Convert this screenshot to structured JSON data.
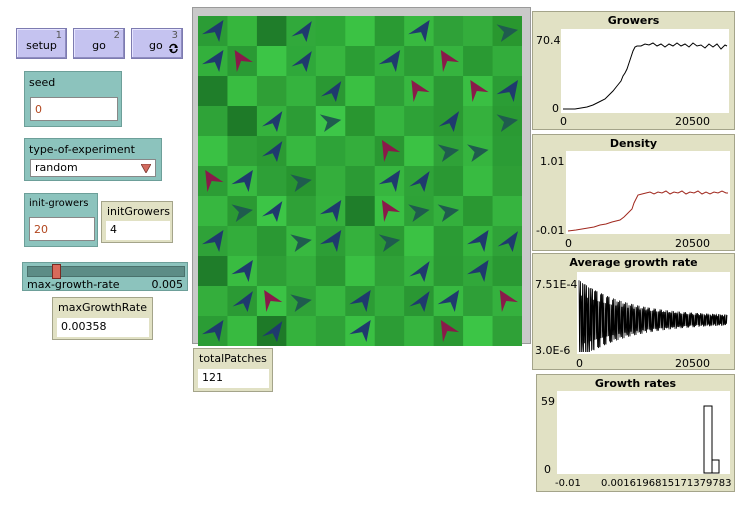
{
  "buttons": [
    {
      "label": "setup",
      "key": "1"
    },
    {
      "label": "go",
      "key": "2"
    },
    {
      "label": "go",
      "key": "3",
      "icon": "forever-icon"
    }
  ],
  "seed": {
    "label": "seed",
    "value": "0"
  },
  "experiment": {
    "label": "type-of-experiment",
    "value": "random"
  },
  "initGrowersInput": {
    "label": "init-growers",
    "value": "20"
  },
  "initGrowersMonitor": {
    "label": "initGrowers",
    "value": "4"
  },
  "slider": {
    "label": "max-growth-rate",
    "value": "0.005",
    "fraction": 0.16
  },
  "maxGrowthRateMonitor": {
    "label": "maxGrowthRate",
    "value": "0.00358"
  },
  "totalPatchesMonitor": {
    "label": "totalPatches",
    "value": "121"
  },
  "colors": {
    "button": "#c5c3f0",
    "widget": "#8cc3bd",
    "monitor": "#e1e1c4",
    "turtle_blue": "#1f3a6e",
    "turtle_maroon": "#8a1a4a",
    "turtle_teal": "#1f5c4e"
  },
  "world": {
    "cols": 11,
    "rows": 11,
    "patch_shades": [
      "#2b9c35",
      "#36b63d",
      "#1f7d2a",
      "#31a93b",
      "#2ea838",
      "#3bc244",
      "#2a9a33",
      "#38b940",
      "#2fa138",
      "#34ad3c",
      "#29972f",
      "#33b03c",
      "#2a9a34",
      "#3cc546",
      "#2fa83a",
      "#37b63f",
      "#2b9d34",
      "#33af3c",
      "#2c9c35",
      "#36b43f",
      "#2a9a33",
      "#33ad3c",
      "#1f7e2a",
      "#39bd41",
      "#2f9f36",
      "#35b33e",
      "#2a9833",
      "#3ac042",
      "#2e9f37",
      "#37b840",
      "#2b9934",
      "#3abf43",
      "#2b9d35",
      "#2fa338",
      "#1e7a28",
      "#35b23d",
      "#2c9c35",
      "#3dc648",
      "#299630",
      "#36b53f",
      "#2ea237",
      "#2b9933",
      "#35b13d",
      "#2a9a33",
      "#3ac144",
      "#2fa137",
      "#2b9a33",
      "#37b840",
      "#2ea338",
      "#34ae3c",
      "#2a9832",
      "#3bc244",
      "#2fa238",
      "#36b53f",
      "#2b9c35",
      "#2c9d35",
      "#38ba40",
      "#2ea037",
      "#289530",
      "#34ae3c",
      "#2b9a34",
      "#37b63f",
      "#2fa338",
      "#2a9833",
      "#38bb41",
      "#2e9f36",
      "#37b740",
      "#2b9a33",
      "#3cc546",
      "#2fa137",
      "#35b13d",
      "#1f7e2a",
      "#3ac043",
      "#2ea237",
      "#34b03d",
      "#2a9832",
      "#36b43f",
      "#2fa238",
      "#33ad3b",
      "#2a9833",
      "#38b940",
      "#2d9e36",
      "#35b13d",
      "#2b9a33",
      "#3bc244",
      "#2b9b34",
      "#36b53e",
      "#2fa238",
      "#1f7d2a",
      "#39bc41",
      "#2e9f36",
      "#34ae3c",
      "#2a9732",
      "#3ac043",
      "#2fa137",
      "#36b43f",
      "#2b9a34",
      "#31a83a",
      "#2a9933",
      "#34ae3c",
      "#2b9a34",
      "#3bc345",
      "#2fa238",
      "#37b740",
      "#2c9c35",
      "#33ad3c",
      "#2a9733",
      "#38ba41",
      "#2e9f37",
      "#35b13e",
      "#2b9c35",
      "#38ba40",
      "#1e7a28",
      "#35b23d",
      "#2fa238",
      "#3ac043",
      "#2c9c35",
      "#36b43f",
      "#2a9832",
      "#3cc546",
      "#2fa137"
    ],
    "turtles": [
      [
        0,
        0,
        "blue"
      ],
      [
        1,
        1,
        "maroon"
      ],
      [
        0,
        1,
        "blue"
      ],
      [
        3,
        1,
        "blue"
      ],
      [
        6,
        1,
        "blue"
      ],
      [
        8,
        1,
        "maroon"
      ],
      [
        10,
        0,
        "teal"
      ],
      [
        3,
        0,
        "blue"
      ],
      [
        7,
        0,
        "blue"
      ],
      [
        4,
        2,
        "blue"
      ],
      [
        7,
        2,
        "maroon"
      ],
      [
        9,
        2,
        "maroon"
      ],
      [
        10,
        2,
        "blue"
      ],
      [
        2,
        3,
        "blue"
      ],
      [
        4,
        3,
        "teal"
      ],
      [
        8,
        3,
        "blue"
      ],
      [
        10,
        3,
        "teal"
      ],
      [
        2,
        4,
        "blue"
      ],
      [
        6,
        4,
        "maroon"
      ],
      [
        8,
        4,
        "teal"
      ],
      [
        9,
        4,
        "teal"
      ],
      [
        0,
        5,
        "maroon"
      ],
      [
        1,
        5,
        "blue"
      ],
      [
        3,
        5,
        "teal"
      ],
      [
        6,
        5,
        "blue"
      ],
      [
        7,
        5,
        "blue"
      ],
      [
        1,
        6,
        "teal"
      ],
      [
        2,
        6,
        "blue"
      ],
      [
        4,
        6,
        "blue"
      ],
      [
        6,
        6,
        "maroon"
      ],
      [
        7,
        6,
        "teal"
      ],
      [
        8,
        6,
        "teal"
      ],
      [
        0,
        7,
        "blue"
      ],
      [
        3,
        7,
        "teal"
      ],
      [
        4,
        7,
        "blue"
      ],
      [
        6,
        7,
        "teal"
      ],
      [
        9,
        7,
        "blue"
      ],
      [
        10,
        7,
        "blue"
      ],
      [
        1,
        8,
        "blue"
      ],
      [
        7,
        8,
        "blue"
      ],
      [
        9,
        8,
        "blue"
      ],
      [
        1,
        9,
        "blue"
      ],
      [
        2,
        9,
        "maroon"
      ],
      [
        3,
        9,
        "teal"
      ],
      [
        5,
        9,
        "blue"
      ],
      [
        7,
        9,
        "blue"
      ],
      [
        8,
        9,
        "blue"
      ],
      [
        10,
        9,
        "maroon"
      ],
      [
        0,
        10,
        "blue"
      ],
      [
        2,
        10,
        "blue"
      ],
      [
        5,
        10,
        "blue"
      ],
      [
        8,
        10,
        "maroon"
      ]
    ]
  },
  "plots": [
    {
      "title": "Growers",
      "ymax": "70.4",
      "ymin": "0",
      "xmin": "0",
      "xmax": "20500",
      "color": "#000000"
    },
    {
      "title": "Density",
      "ymax": "1.01",
      "ymin": "-0.01",
      "xmin": "0",
      "xmax": "20500",
      "color": "#a0281e"
    },
    {
      "title": "Average growth rate",
      "ymax": "7.51E-4",
      "ymin": "3.0E-6",
      "xmin": "0",
      "xmax": "20500",
      "color": "#000000"
    },
    {
      "title": "Growth rates",
      "ymax": "59",
      "ymin": "0",
      "xmin": "-0.01",
      "xmax": "0.0016196815171379783",
      "color": "#000000"
    }
  ]
}
